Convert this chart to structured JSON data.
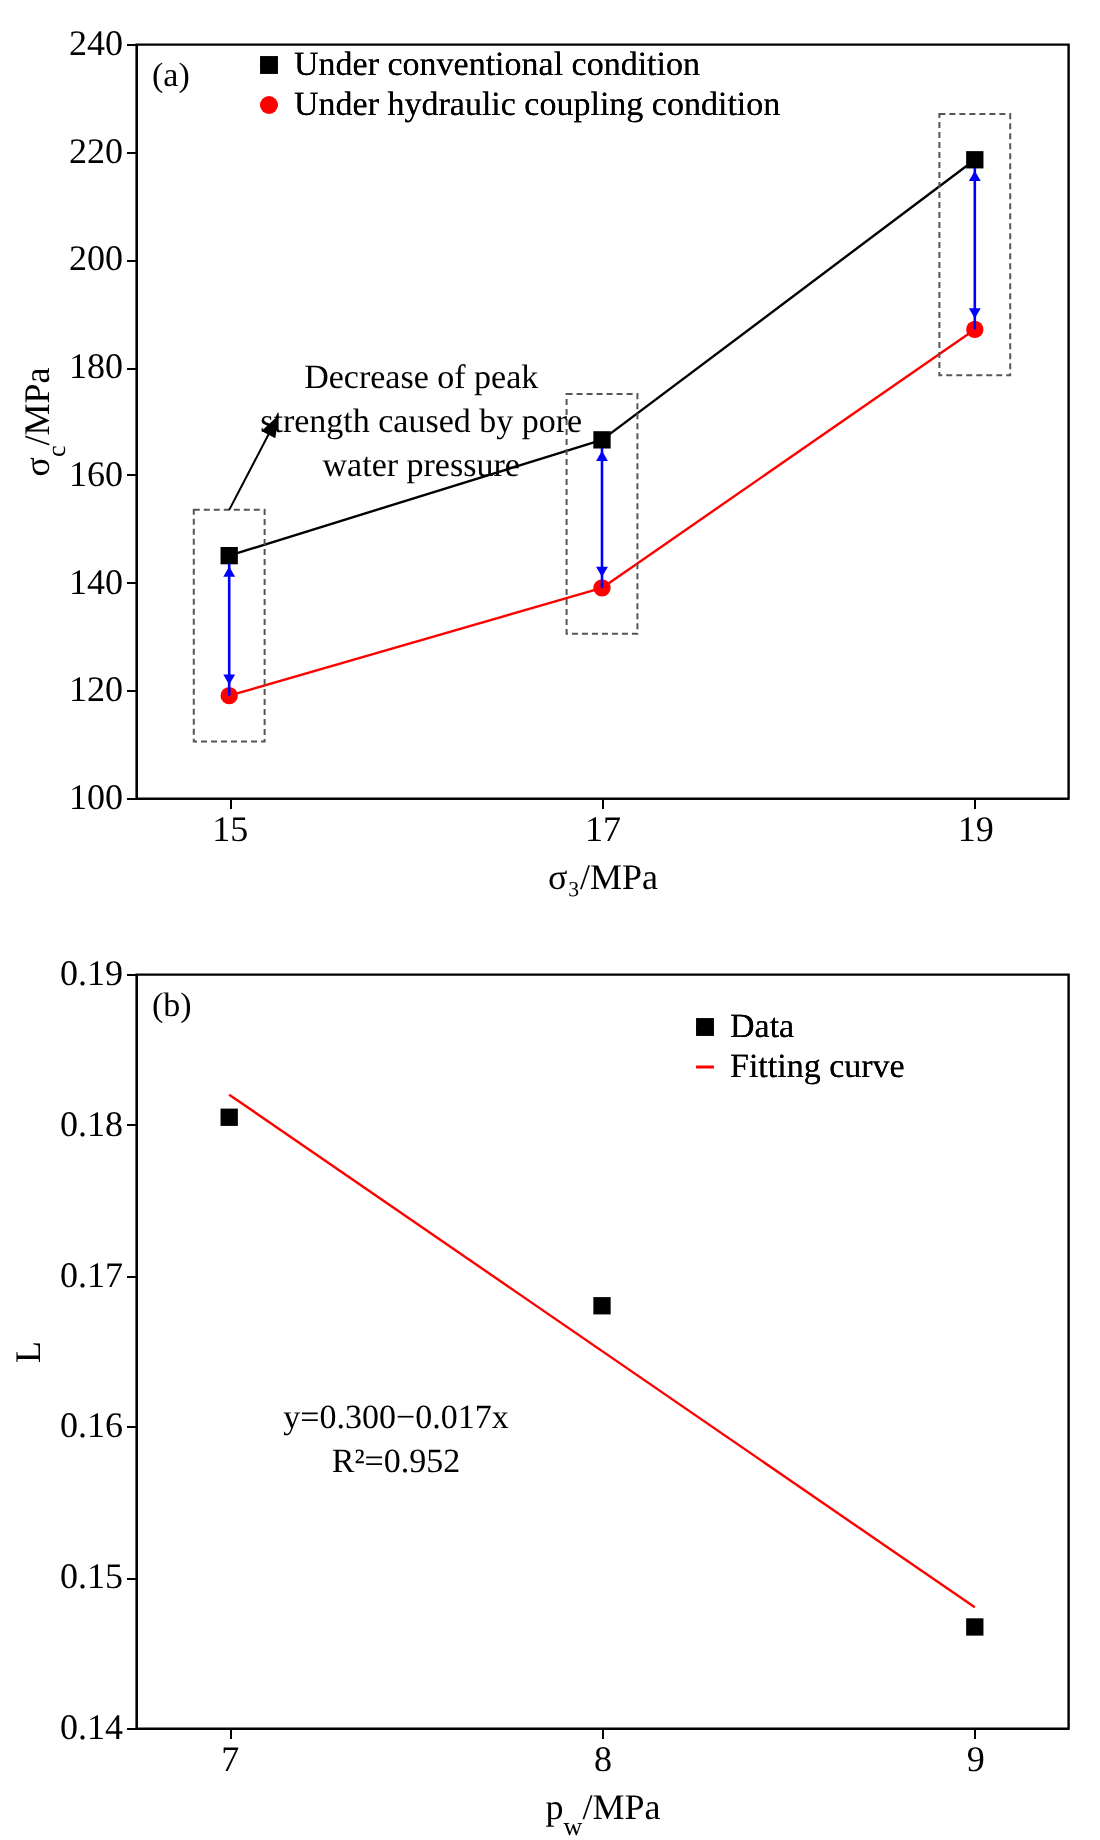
{
  "chart_data": [
    {
      "type": "line",
      "xlabel": "σ₃/MPa",
      "ylabel": "σ$_{c}$/MPa",
      "x": [
        15,
        17,
        19
      ],
      "xlim": [
        14.5,
        19.5
      ],
      "xticks": [
        15,
        17,
        19
      ],
      "ylim": [
        100,
        240
      ],
      "yticks": [
        100,
        120,
        140,
        160,
        180,
        200,
        220,
        240
      ],
      "legend": "top left",
      "series": [
        {
          "name": "Under conventional condition",
          "color": "#000000",
          "marker": "square",
          "values": [
            145,
            166.5,
            218.5
          ]
        },
        {
          "name": "Under hydraulic coupling condition",
          "color": "#ff0000",
          "marker": "circle",
          "values": [
            119,
            139,
            187
          ]
        }
      ],
      "annotations": [
        "(a)",
        {
          "text": "Decrease of peak strength caused by pore water pressure",
          "x": 15,
          "y": 145
        }
      ]
    },
    {
      "type": "scatter",
      "xlabel": "p$_{w}$/MPa",
      "ylabel": "L",
      "xlim": [
        6.75,
        9.25
      ],
      "xticks": [
        7,
        8,
        9
      ],
      "ylim": [
        0.14,
        0.19
      ],
      "yticks": [
        0.14,
        0.15,
        0.16,
        0.17,
        0.18,
        0.19
      ],
      "legend": "top right",
      "series": [
        {
          "name": "Data",
          "color": "#000000",
          "marker": "square",
          "x": [
            7,
            8,
            9
          ],
          "values": [
            0.1805,
            0.168,
            0.1467
          ]
        },
        {
          "name": "Fitting curve",
          "type": "line",
          "color": "#ff0000",
          "marker": "none",
          "x": [
            7,
            9
          ],
          "values": [
            0.182,
            0.148
          ]
        }
      ],
      "annotations": [
        "(b)",
        "y=0.300−0.017x",
        "R²=0.952"
      ]
    }
  ]
}
